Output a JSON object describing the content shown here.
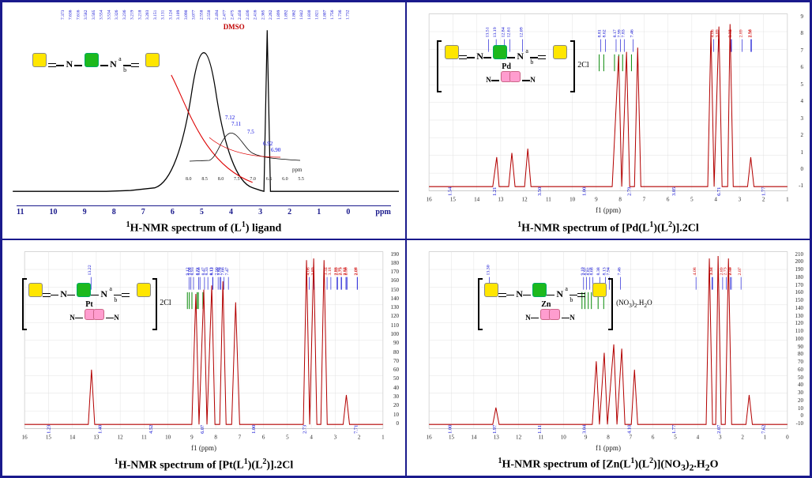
{
  "panels": {
    "tl": {
      "caption_pre": "1",
      "caption": "H-NMR spectrum of (L",
      "caption_sup2": "1",
      "caption_post": ") ligand",
      "dmso_label": "DMSO",
      "inset_labels": [
        "7.12",
        "7.11",
        "7.5",
        "6.92",
        "6.90"
      ],
      "inset_ppm": "ppm",
      "inset_xticks": [
        "8.0",
        "8.5",
        "8.0",
        "7.5",
        "7.0",
        "6.5",
        "6.0",
        "5.5"
      ],
      "peak_ppms": [
        "7.373",
        "7.636",
        "7.616",
        "3.582",
        "3.565",
        "3.554",
        "3.534",
        "3.326",
        "3.236",
        "3.219",
        "3.218",
        "3.203",
        "3.151",
        "3.131",
        "3.124",
        "3.109",
        "3.090",
        "3.077",
        "2.558",
        "2.550",
        "2.494",
        "2.477",
        "2.475",
        "2.450",
        "2.436",
        "2.416",
        "2.365",
        "2.262",
        "1.899",
        "1.892",
        "1.862",
        "1.842",
        "1.830",
        "1.821",
        "1.807",
        "1.756",
        "1.736",
        "1.732",
        "1.718"
      ],
      "xaxis": [
        "11",
        "10",
        "9",
        "8",
        "7",
        "6",
        "5",
        "4",
        "3",
        "2",
        "1",
        "0",
        "ppm"
      ],
      "color_trace": "#000000",
      "color_peaks": "#0000d0",
      "mol_labels": {
        "a": "a",
        "b": "b"
      },
      "mol_atoms": {
        "N": "N"
      }
    },
    "tr": {
      "caption_pre": "1",
      "caption": "H-NMR spectrum of [Pd(L",
      "caption_sup2": "1",
      "caption_mid": ")(L",
      "caption_sup3": "2",
      "caption_post": ")].2Cl",
      "counterion": "2Cl",
      "metal": "Pd",
      "xlabel": "f1 (ppm)",
      "xaxis": [
        "16",
        "15",
        "14",
        "13",
        "12",
        "11",
        "10",
        "9",
        "8",
        "7",
        "6",
        "5",
        "4",
        "3",
        "2",
        "1"
      ],
      "integrals": [
        "1.54",
        "1.21",
        "3.50",
        "1.00",
        "2.79",
        "3.05",
        "6.71",
        "1.77"
      ],
      "right_axis": [
        "9",
        "8",
        "7",
        "6",
        "5",
        "4",
        "3",
        "2",
        "1",
        "0",
        "-1"
      ],
      "peak_ppms_top": [
        "13.51",
        "13.19",
        "12.84",
        "12.61",
        "12.09"
      ],
      "peak_ppms_mid": [
        "8.81",
        "8.62",
        "8.17",
        "7.99",
        "7.83",
        "7.46"
      ],
      "peak_ppms_low": [
        "4.08",
        "3.89",
        "3.35",
        "3.34",
        "2.89",
        "2.54",
        "2.50"
      ],
      "color_trace": "#b30000"
    },
    "bl": {
      "caption_pre": "1",
      "caption": "H-NMR spectrum of [Pt(L",
      "caption_sup2": "1",
      "caption_mid": ")(L",
      "caption_sup3": "2",
      "caption_post": ")].2Cl",
      "counterion": "2Cl",
      "metal": "Pt",
      "xlabel": "f1 (ppm)",
      "xaxis": [
        "16",
        "15",
        "14",
        "13",
        "12",
        "11",
        "10",
        "9",
        "8",
        "7",
        "6",
        "5",
        "4",
        "3",
        "2",
        "1"
      ],
      "integrals": [
        "1.23",
        "1.40",
        "4.52",
        "6.07",
        "1.00",
        "2.73",
        "7.71"
      ],
      "right_axis": [
        "190",
        "180",
        "170",
        "160",
        "150",
        "140",
        "130",
        "120",
        "110",
        "100",
        "90",
        "80",
        "70",
        "60",
        "50",
        "40",
        "30",
        "20",
        "10",
        "0"
      ],
      "peak_ppms_top": [
        "13.22"
      ],
      "peak_ppms_mid": [
        "9.12",
        "9.04",
        "8.93",
        "8.71",
        "8.66",
        "8.47",
        "8.33",
        "8.13",
        "8.12",
        "7.90",
        "7.83",
        "7.78",
        "7.66",
        "7.47"
      ],
      "peak_ppms_low": [
        "4.08",
        "3.89",
        "3.34",
        "3.18",
        "2.93",
        "2.89",
        "2.75",
        "2.73",
        "2.55",
        "2.54",
        "2.50",
        "2.08",
        "2.07"
      ],
      "color_trace": "#b30000"
    },
    "br": {
      "caption_pre": "1",
      "caption": "H-NMR spectrum of [Zn(L",
      "caption_sup2": "1",
      "caption_mid": ")(L",
      "caption_sup3": "2",
      "caption_post": ")](NO",
      "caption_sub": "3",
      "caption_post2": ")",
      "caption_sub2": "2",
      "caption_post3": ".H",
      "caption_sub3": "2",
      "caption_post4": "O",
      "counterion": "(NO3)2.H2O",
      "metal": "Zn",
      "xlabel": "f1 (ppm)",
      "xaxis": [
        "16",
        "15",
        "14",
        "13",
        "12",
        "11",
        "10",
        "9",
        "8",
        "7",
        "6",
        "5",
        "4",
        "3",
        "2",
        "1",
        "0"
      ],
      "integrals": [
        "1.00",
        "1.97",
        "1.11",
        "3.04",
        "4.10",
        "1.77",
        "2.07",
        "7.62"
      ],
      "right_axis": [
        "210",
        "200",
        "190",
        "180",
        "170",
        "160",
        "150",
        "140",
        "130",
        "120",
        "110",
        "100",
        "90",
        "80",
        "70",
        "60",
        "50",
        "40",
        "30",
        "20",
        "10",
        "0",
        "-10"
      ],
      "peak_ppms_top": [
        "13.30"
      ],
      "peak_ppms_mid": [
        "9.10",
        "8.97",
        "8.82",
        "8.68",
        "8.38",
        "8.13",
        "7.94",
        "7.46"
      ],
      "peak_ppms_low": [
        "4.08",
        "3.37",
        "3.34",
        "2.89",
        "2.73",
        "2.54",
        "2.50",
        "2.07"
      ],
      "color_trace": "#b30000"
    }
  },
  "colors": {
    "border": "#1a1a8c",
    "peak_label": "#0000d0",
    "integral": "#0a8a0a",
    "dmso": "#c00000"
  }
}
